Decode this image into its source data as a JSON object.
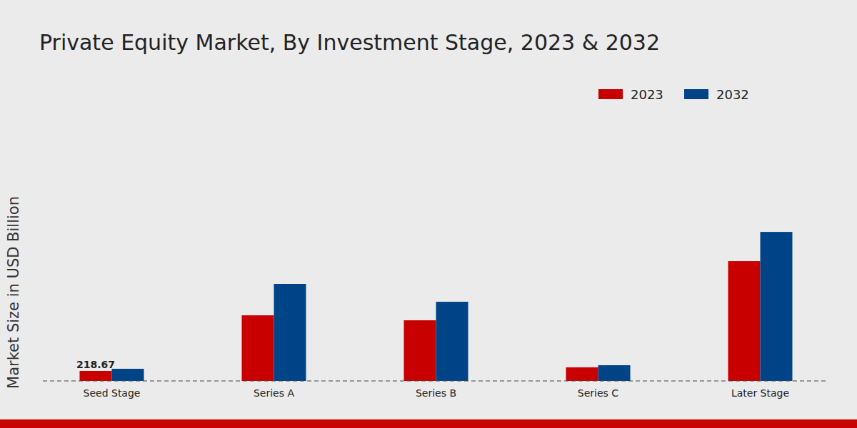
{
  "chart_data": {
    "type": "bar",
    "title": "Private Equity Market, By Investment Stage, 2023 & 2032",
    "y_label": "Market Size in USD Billion",
    "categories": [
      "Seed Stage",
      "Series A",
      "Series B",
      "Series C",
      "Later Stage"
    ],
    "series": [
      {
        "name": "2023",
        "color": "#c80000",
        "values": [
          218.67,
          1437,
          1328,
          297,
          2624
        ],
        "data_labels": true,
        "value_labels": [
          "218.67",
          null,
          null,
          null,
          null
        ]
      },
      {
        "name": "2032",
        "color": "#004488",
        "values": [
          266,
          2125,
          1734,
          344,
          3264
        ]
      }
    ],
    "ylim": [
      0,
      3500
    ],
    "grid": false,
    "legend": "top-right",
    "tick_labels": "x"
  }
}
